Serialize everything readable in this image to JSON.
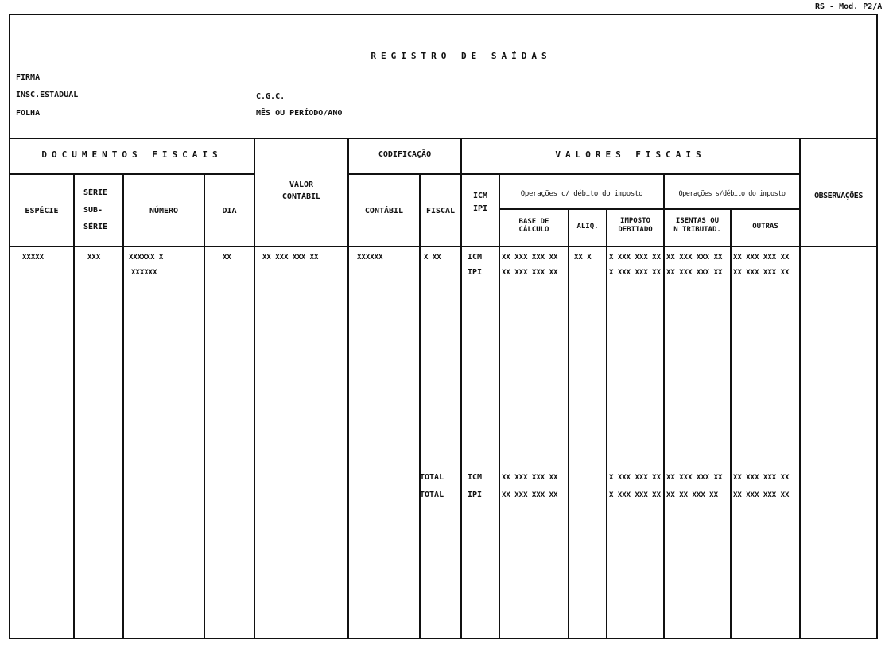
{
  "form_code": "RS - Mod. P2/A",
  "title": "REGISTRO DE SAÍDAS",
  "fields": {
    "firma": "FIRMA",
    "insc_estadual": "INSC.ESTADUAL",
    "folha": "FOLHA",
    "cgc": "C.G.C.",
    "mes_periodo": "MÊS OU PERÍODO/ANO"
  },
  "groups": {
    "documentos_fiscais": "DOCUMENTOS FISCAIS",
    "codificacao": "CODIFICAÇÃO",
    "valores_fiscais": "VALORES FISCAIS",
    "ops_com_debito": "Operações c/ débito do imposto",
    "ops_sem_debito": "Operações s/débito do imposto"
  },
  "columns": {
    "especie": "ESPÉCIE",
    "serie_1": "SÉRIE",
    "serie_2": "SUB-",
    "serie_3": "SÉRIE",
    "numero": "NÚMERO",
    "dia": "DIA",
    "valor_1": "VALOR",
    "valor_2": "CONTÁBIL",
    "contabil": "CONTÁBIL",
    "fiscal": "FISCAL",
    "icm": "ICM",
    "ipi": "IPI",
    "base_1": "BASE DE",
    "base_2": "CÁLCULO",
    "aliq": "ALIQ.",
    "imposto_1": "IMPOSTO",
    "imposto_2": "DEBITADO",
    "isentas_1": "ISENTAS OU",
    "isentas_2": "N TRIBUTAD.",
    "outras": "OUTRAS",
    "observacoes": "OBSERVAÇÕES"
  },
  "sample_row": {
    "especie": "XXXXX",
    "serie": "XXX",
    "numero_1": "XXXXXX X",
    "numero_2": "XXXXXX",
    "dia": "XX",
    "valor_contabil": "XX XXX XXX XX",
    "cod_contabil": "XXXXXX",
    "cod_fiscal": "X XX",
    "icm_label": "ICM",
    "ipi_label": "IPI",
    "icm_base": "XX XXX XXX XX",
    "ipi_base": "XX XXX XXX XX",
    "icm_aliq": "XX X",
    "icm_imposto": "X XXX XXX XX",
    "ipi_imposto": "X XXX XXX XX",
    "icm_isentas": "XX XXX XXX XX",
    "ipi_isentas": "XX XXX XXX XX",
    "icm_outras": "XX XXX XXX XX",
    "ipi_outras": "XX XXX XXX XX"
  },
  "totals": [
    {
      "label": "TOTAL",
      "tax": "ICM",
      "base": "XX XXX XXX XX",
      "imposto": "X XXX XXX XX",
      "isentas": "XX XXX XXX XX",
      "outras": "XX XXX XXX XX"
    },
    {
      "label": "TOTAL",
      "tax": "IPI",
      "base": "XX XXX XXX XX",
      "imposto": "X XXX XXX XX",
      "isentas": "XX XX XXX XX",
      "outras": "XX XXX XXX XX"
    }
  ]
}
